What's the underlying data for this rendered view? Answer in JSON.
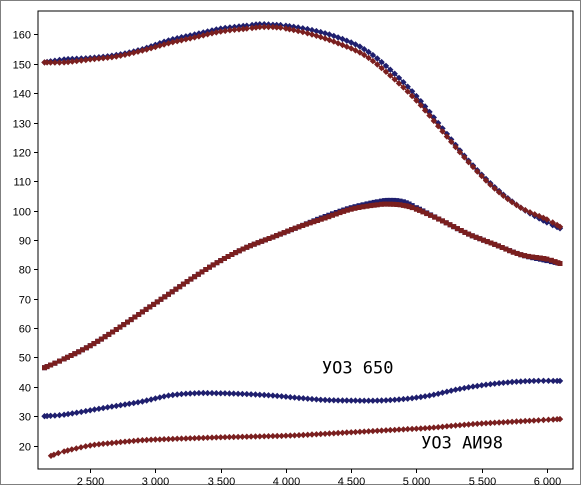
{
  "chart_data": {
    "type": "scatter",
    "grid": true,
    "xlim": [
      2100,
      6200
    ],
    "ylim": [
      12,
      168
    ],
    "x_ticks": [
      2500,
      3000,
      3500,
      4000,
      4500,
      5000,
      5500,
      6000
    ],
    "x_tick_labels": [
      "2 500",
      "3 000",
      "3 500",
      "4 000",
      "4 500",
      "5 000",
      "5 500",
      "6 000"
    ],
    "y_ticks": [
      20,
      30,
      40,
      50,
      60,
      70,
      80,
      90,
      100,
      110,
      120,
      130,
      140,
      150,
      160
    ],
    "y_tick_labels": [
      "20",
      "30",
      "40",
      "50",
      "60",
      "70",
      "80",
      "90",
      "100",
      "110",
      "120",
      "130",
      "140",
      "150",
      "160"
    ],
    "series": [
      {
        "color": "#1f1f6e",
        "marker": "diamond",
        "x": [
          2150,
          2300,
          2500,
          2700,
          2900,
          3100,
          3300,
          3500,
          3700,
          3800,
          3900,
          4000,
          4200,
          4400,
          4600,
          4800,
          5000,
          5200,
          5400,
          5600,
          5800,
          6000,
          6100
        ],
        "y": [
          150.5,
          151.5,
          152,
          153,
          155,
          158,
          160,
          162,
          163,
          163.5,
          163.3,
          163,
          161.5,
          159,
          155,
          148,
          139,
          128,
          117,
          108,
          101,
          96,
          94
        ]
      },
      {
        "color": "#7a1f1f",
        "marker": "diamond",
        "x": [
          2150,
          2300,
          2500,
          2700,
          2900,
          3100,
          3300,
          3500,
          3700,
          3800,
          3900,
          4000,
          4200,
          4400,
          4600,
          4800,
          5000,
          5200,
          5400,
          5600,
          5800,
          6000,
          6100
        ],
        "y": [
          150.5,
          150.5,
          151.5,
          152.5,
          154.5,
          157,
          159,
          161,
          162,
          162.5,
          162.5,
          162,
          160,
          157,
          153,
          146,
          137.5,
          127,
          116.5,
          107.5,
          101,
          97,
          94.5
        ]
      },
      {
        "color": "#1f1f6e",
        "marker": "square",
        "x": [
          2150,
          2300,
          2500,
          2700,
          2900,
          3100,
          3300,
          3500,
          3700,
          3900,
          4100,
          4300,
          4500,
          4700,
          4800,
          4900,
          5000,
          5200,
          5400,
          5600,
          5800,
          6000,
          6100
        ],
        "y": [
          46.5,
          49.5,
          54,
          59.5,
          65.5,
          71.5,
          77.5,
          83,
          87.5,
          91,
          94.5,
          98,
          101,
          103,
          103.5,
          103,
          101,
          96.5,
          92,
          88.5,
          85,
          83,
          82
        ]
      },
      {
        "color": "#7a1f1f",
        "marker": "square",
        "x": [
          2150,
          2300,
          2500,
          2700,
          2900,
          3100,
          3300,
          3500,
          3700,
          3900,
          4100,
          4300,
          4500,
          4700,
          4800,
          4900,
          5000,
          5200,
          5400,
          5600,
          5800,
          6000,
          6100
        ],
        "y": [
          46.5,
          49.5,
          54,
          59.5,
          65.5,
          71.5,
          77.5,
          83,
          87.5,
          91,
          94.5,
          97.5,
          100.5,
          102,
          102.2,
          101.8,
          100.5,
          96.5,
          92,
          88.5,
          85,
          83.5,
          82
        ]
      },
      {
        "color": "#1f1f6e",
        "marker": "diamond",
        "x": [
          2150,
          2300,
          2500,
          2700,
          2900,
          3100,
          3300,
          3500,
          3700,
          3900,
          4100,
          4300,
          4500,
          4700,
          4900,
          5100,
          5300,
          5500,
          5700,
          5900,
          6100
        ],
        "y": [
          30,
          30.5,
          32,
          33.5,
          35,
          37,
          37.8,
          37.8,
          37.5,
          37,
          36.2,
          35.5,
          35.3,
          35.3,
          35.8,
          37,
          39,
          40.5,
          41.5,
          42,
          42
        ]
      },
      {
        "color": "#7a1f1f",
        "marker": "diamond",
        "x": [
          2200,
          2300,
          2500,
          2700,
          2900,
          3100,
          3300,
          3500,
          3700,
          3900,
          4100,
          4300,
          4500,
          4700,
          4900,
          5100,
          5300,
          5500,
          5700,
          5900,
          6100
        ],
        "y": [
          16.5,
          18,
          20,
          21,
          21.8,
          22.2,
          22.5,
          22.8,
          23,
          23.2,
          23.5,
          24,
          24.5,
          25,
          25.5,
          26,
          26.8,
          27.5,
          28,
          28.5,
          29
        ]
      }
    ],
    "annotations": [
      {
        "text": "УОЗ 650",
        "x": 4550,
        "y": 44.5
      },
      {
        "text": "УОЗ АИ98",
        "x": 5350,
        "y": 19
      }
    ]
  }
}
